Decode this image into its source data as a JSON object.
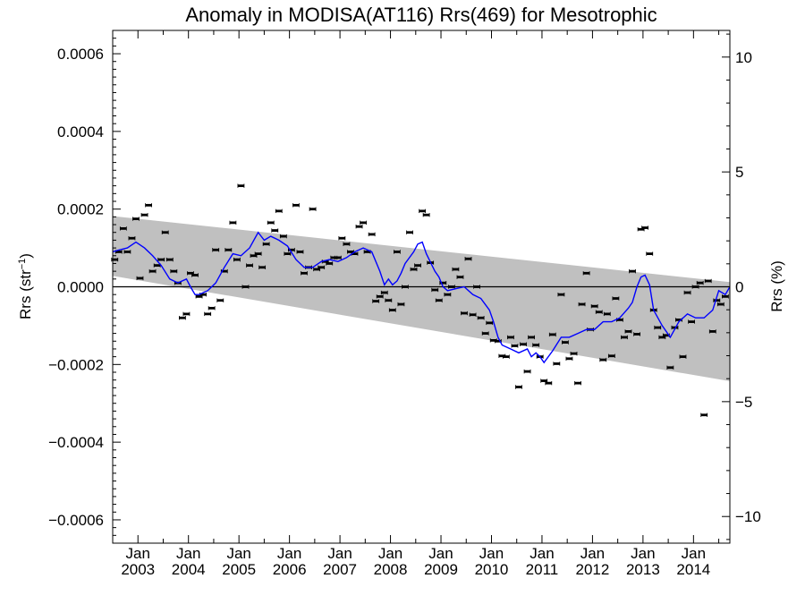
{
  "chart_data": {
    "type": "line",
    "title": "Anomaly in MODISA(AT116) Rrs(469) for Mesotrophic",
    "ylabel_left": "Rrs (str",
    "ylabel_left_sup": "−1",
    "ylabel_left_close": ")",
    "ylabel_right": "Rrs (%)",
    "xlim": [
      2002.5,
      2014.72
    ],
    "ylim": [
      -0.00066,
      0.00066
    ],
    "ylim_right": [
      -11.16,
      11.16
    ],
    "y_ticks": [
      -0.0006,
      -0.0004,
      -0.0002,
      0,
      0.0002,
      0.0004,
      0.0006
    ],
    "y_tick_labels": [
      "−0.0006",
      "−0.0004",
      "−0.0002",
      "0.0000",
      "0.0002",
      "0.0004",
      "0.0006"
    ],
    "y_right_ticks": [
      -10,
      -5,
      0,
      5,
      10
    ],
    "y_right_tick_labels": [
      "−10",
      "−5",
      "0",
      "5",
      "10"
    ],
    "x_ticks": [
      2003,
      2004,
      2005,
      2006,
      2007,
      2008,
      2009,
      2010,
      2011,
      2012,
      2013,
      2014
    ],
    "x_tick_top": [
      "Jan",
      "Jan",
      "Jan",
      "Jan",
      "Jan",
      "Jan",
      "Jan",
      "Jan",
      "Jan",
      "Jan",
      "Jan",
      "Jan"
    ],
    "x_tick_bottom": [
      "2003",
      "2004",
      "2005",
      "2006",
      "2007",
      "2008",
      "2009",
      "2010",
      "2011",
      "2012",
      "2013",
      "2014"
    ],
    "band": {
      "x": [
        2002.5,
        2014.72
      ],
      "upper": [
        0.000182,
        1.2e-05
      ],
      "lower": [
        2.8e-05,
        -0.000243
      ]
    },
    "zero_line": 0,
    "monthly_anomalies": {
      "x": [
        2002.54,
        2002.62,
        2002.71,
        2002.79,
        2002.88,
        2002.96,
        2003.04,
        2003.13,
        2003.21,
        2003.29,
        2003.38,
        2003.46,
        2003.54,
        2003.63,
        2003.71,
        2003.79,
        2003.88,
        2003.96,
        2004.04,
        2004.13,
        2004.21,
        2004.29,
        2004.38,
        2004.46,
        2004.54,
        2004.63,
        2004.71,
        2004.79,
        2004.88,
        2004.96,
        2005.04,
        2005.13,
        2005.21,
        2005.29,
        2005.38,
        2005.46,
        2005.54,
        2005.63,
        2005.71,
        2005.79,
        2005.88,
        2005.96,
        2006.04,
        2006.13,
        2006.21,
        2006.29,
        2006.38,
        2006.46,
        2006.54,
        2006.63,
        2006.71,
        2006.79,
        2006.88,
        2006.96,
        2007.04,
        2007.13,
        2007.21,
        2007.29,
        2007.38,
        2007.46,
        2007.54,
        2007.63,
        2007.71,
        2007.79,
        2007.88,
        2007.96,
        2008.04,
        2008.13,
        2008.21,
        2008.29,
        2008.38,
        2008.46,
        2008.54,
        2008.63,
        2008.71,
        2008.79,
        2008.88,
        2008.96,
        2009.04,
        2009.13,
        2009.21,
        2009.29,
        2009.38,
        2009.46,
        2009.54,
        2009.63,
        2009.71,
        2009.79,
        2009.88,
        2009.96,
        2010.04,
        2010.13,
        2010.21,
        2010.29,
        2010.38,
        2010.46,
        2010.54,
        2010.63,
        2010.71,
        2010.79,
        2010.88,
        2010.96,
        2011.04,
        2011.13,
        2011.21,
        2011.29,
        2011.38,
        2011.46,
        2011.54,
        2011.63,
        2011.71,
        2011.79,
        2011.88,
        2011.96,
        2012.04,
        2012.13,
        2012.21,
        2012.29,
        2012.38,
        2012.46,
        2012.54,
        2012.63,
        2012.71,
        2012.79,
        2012.88,
        2012.96,
        2013.04,
        2013.13,
        2013.21,
        2013.29,
        2013.38,
        2013.46,
        2013.54,
        2013.63,
        2013.71,
        2013.79,
        2013.88,
        2013.96,
        2014.04,
        2014.13,
        2014.21,
        2014.29,
        2014.38,
        2014.46,
        2014.54,
        2014.63
      ],
      "y": [
        7e-05,
        9e-05,
        0.00015,
        9e-05,
        0.000125,
        0.000175,
        2.2e-05,
        0.000185,
        0.00021,
        4e-05,
        5.5e-05,
        7e-05,
        0.00014,
        7e-05,
        4e-05,
        1e-05,
        -8e-05,
        -7e-05,
        3.5e-05,
        3e-05,
        -2.5e-05,
        -2e-05,
        -7e-05,
        -5.5e-05,
        9.5e-05,
        -3.5e-05,
        4e-05,
        9.5e-05,
        0.000165,
        7e-05,
        0.00026,
        0.0,
        5.5e-05,
        8e-05,
        8.5e-05,
        5e-05,
        0.00011,
        0.000165,
        0.000145,
        0.000195,
        0.00013,
        8.5e-05,
        9.5e-05,
        0.00021,
        9e-05,
        3.5e-05,
        5e-05,
        0.0002,
        4.5e-05,
        5e-05,
        6.5e-05,
        6e-05,
        7.5e-05,
        7.5e-05,
        0.000125,
        0.00011,
        9e-05,
        8.5e-05,
        0.000155,
        0.000165,
        9e-05,
        0.000135,
        -3.7e-05,
        -2.5e-05,
        -1.5e-05,
        -3.5e-05,
        -6e-05,
        9e-05,
        -4.5e-05,
        0.0,
        0.00014,
        4.5e-05,
        5.5e-05,
        0.000195,
        0.000185,
        6.2e-05,
        -8e-06,
        -3.5e-05,
        1e-05,
        -2e-05,
        0.0,
        4.5e-05,
        2.5e-05,
        -6.8e-05,
        7.2e-05,
        -7.2e-05,
        0.0,
        -8e-05,
        -0.00012,
        -9.3e-05,
        -0.000138,
        -0.00014,
        -0.000178,
        -0.00018,
        -0.00013,
        -0.000152,
        -0.000258,
        -0.000148,
        -0.000218,
        -0.00013,
        -0.00015,
        -0.00018,
        -0.000242,
        -0.000248,
        -0.000123,
        -0.000198,
        -2e-05,
        -0.000143,
        -0.000185,
        -0.000172,
        -0.000248,
        -4.5e-05,
        3.5e-05,
        -0.00011,
        -5e-05,
        -6.5e-05,
        -0.000188,
        -7e-05,
        -0.000178,
        -3e-05,
        -8.5e-05,
        -0.00013,
        -0.000115,
        4e-05,
        -0.000122,
        0.000148,
        0.000152,
        8.5e-05,
        -6e-05,
        -0.000105,
        -0.00013,
        -0.000125,
        -0.000208,
        -0.000105,
        -8.5e-05,
        -0.00018,
        -1.5e-05,
        -9e-05,
        0.0,
        1e-05,
        -0.00033,
        1.5e-05,
        -0.000115,
        -3.5e-05,
        -4.5e-05,
        -2.5e-05
      ]
    },
    "running_mean": {
      "x": [
        2002.5,
        2002.63,
        2002.79,
        2002.96,
        2003.13,
        2003.29,
        2003.46,
        2003.63,
        2003.79,
        2003.96,
        2004.04,
        2004.13,
        2004.21,
        2004.38,
        2004.54,
        2004.71,
        2004.88,
        2005.04,
        2005.21,
        2005.38,
        2005.5,
        2005.63,
        2005.79,
        2005.96,
        2006.13,
        2006.29,
        2006.46,
        2006.63,
        2006.79,
        2006.96,
        2007.13,
        2007.29,
        2007.46,
        2007.63,
        2007.79,
        2007.88,
        2007.96,
        2008.04,
        2008.13,
        2008.21,
        2008.29,
        2008.46,
        2008.54,
        2008.63,
        2008.71,
        2008.88,
        2008.96,
        2009.04,
        2009.13,
        2009.29,
        2009.46,
        2009.63,
        2009.79,
        2009.96,
        2010.04,
        2010.13,
        2010.21,
        2010.38,
        2010.54,
        2010.71,
        2010.79,
        2010.88,
        2010.96,
        2011.04,
        2011.21,
        2011.38,
        2011.54,
        2011.71,
        2011.88,
        2012.04,
        2012.21,
        2012.38,
        2012.54,
        2012.71,
        2012.79,
        2012.88,
        2012.96,
        2013.04,
        2013.13,
        2013.21,
        2013.38,
        2013.54,
        2013.71,
        2013.88,
        2014.04,
        2014.21,
        2014.38,
        2014.5,
        2014.63,
        2014.72
      ],
      "y": [
        9e-05,
        9.5e-05,
        0.0001,
        0.000115,
        0.0001,
        8e-05,
        5.5e-05,
        2e-05,
        1e-05,
        2e-05,
        0.0,
        -2e-05,
        -2e-05,
        -1e-05,
        1e-05,
        5e-05,
        8.5e-05,
        8e-05,
        0.0001,
        0.00014,
        0.00012,
        0.00013,
        0.00012,
        0.000105,
        7e-05,
        5e-05,
        5e-05,
        6.5e-05,
        7e-05,
        6.5e-05,
        7.5e-05,
        9e-05,
        0.0001,
        9e-05,
        4e-05,
        5e-06,
        2e-05,
        5e-06,
        1.5e-05,
        3.5e-05,
        6e-05,
        9e-05,
        0.00011,
        0.000115,
        8.5e-05,
        4e-05,
        2.5e-05,
        0.0,
        -1e-05,
        -5e-06,
        0.0,
        -2e-05,
        -3e-05,
        -6e-05,
        -9e-05,
        -0.00013,
        -0.00015,
        -0.00016,
        -0.00017,
        -0.00016,
        -0.00018,
        -0.00017,
        -0.00018,
        -0.000195,
        -0.000165,
        -0.00013,
        -0.00013,
        -0.00012,
        -0.00011,
        -0.00011,
        -9e-05,
        -9e-05,
        -8e-05,
        -5.5e-05,
        -4e-05,
        0.0,
        2.5e-05,
        3e-05,
        5e-06,
        -6e-05,
        -0.0001,
        -0.00013,
        -9e-05,
        -7e-05,
        -8e-05,
        -8e-05,
        -6e-05,
        -1e-05,
        -2e-05,
        0.0
      ]
    },
    "colors": {
      "band": "#c0c0c0",
      "running_mean": "#0000ff",
      "markers": "#000000",
      "zero_line": "#000000",
      "background": "#ffffff"
    },
    "grid": false,
    "legend": "none"
  }
}
